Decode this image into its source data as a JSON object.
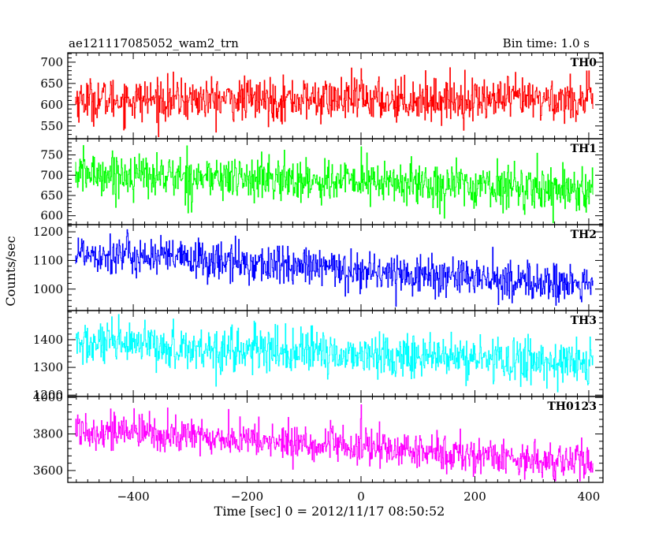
{
  "chart_data": {
    "type": "line",
    "title": "ae121117085052_wam2_trn",
    "bin_time_label": "Bin time: 1.0 s",
    "xlabel": "Time [sec] 0 = 2012/11/17 08:50:52",
    "ylabel": "Counts/sec",
    "xlim": [
      -515,
      425
    ],
    "x_ticks": [
      -400,
      -200,
      0,
      200,
      400
    ],
    "x_start": -502,
    "x_end": 408,
    "bin_seconds": 1.0,
    "panels": [
      {
        "name": "TH0",
        "color": "#ff0000",
        "ylim": [
          520,
          722
        ],
        "y_ticks": [
          550,
          600,
          650,
          700
        ],
        "level_start": 612,
        "level_end": 612,
        "noise_sd": 25,
        "spike_at": 0,
        "spike_to": 685
      },
      {
        "name": "TH1",
        "color": "#00ff00",
        "ylim": [
          578,
          790
        ],
        "y_ticks": [
          600,
          650,
          700,
          750
        ],
        "level_start": 705,
        "level_end": 665,
        "noise_sd": 27,
        "spike_at": 0,
        "spike_to": 770
      },
      {
        "name": "TH2",
        "color": "#0000ff",
        "ylim": [
          925,
          1225
        ],
        "y_ticks": [
          1000,
          1100,
          1200
        ],
        "level_start": 1130,
        "level_end": 1010,
        "noise_sd": 35,
        "spike_at": null,
        "spike_to": null
      },
      {
        "name": "TH3",
        "color": "#00ffff",
        "ylim": [
          1195,
          1505
        ],
        "y_ticks": [
          1200,
          1300,
          1400
        ],
        "level_start": 1385,
        "level_end": 1315,
        "noise_sd": 40,
        "spike_at": null,
        "spike_to": null
      },
      {
        "name": "TH0123",
        "color": "#ff00ff",
        "ylim": [
          3535,
          4005
        ],
        "y_ticks": [
          3600,
          3800,
          4000
        ],
        "level_start": 3830,
        "level_end": 3640,
        "noise_sd": 50,
        "spike_at": 0,
        "spike_to": 3960
      }
    ]
  }
}
